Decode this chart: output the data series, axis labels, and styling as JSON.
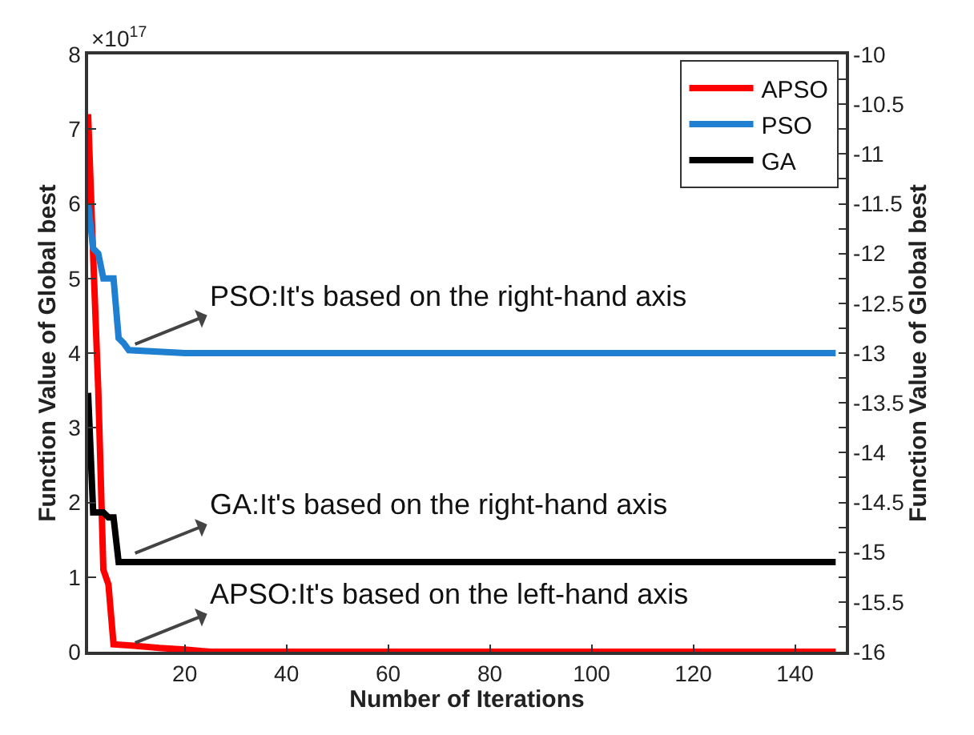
{
  "chart_data": {
    "type": "line",
    "xlabel": "Number of Iterations",
    "ylabel": "Function Value of Global best",
    "y2label": "Function Value of Global best",
    "annotations": [
      "PSO:It's based on the right-hand axis",
      "GA:It's based on the right-hand axis",
      "APSO:It's based on the left-hand axis",
      "×10$^{17}$"
    ],
    "series": [
      {
        "name": "APSO",
        "color": "#ff0000",
        "x": [
          1,
          2,
          3,
          4,
          5,
          6,
          10,
          15,
          20,
          25,
          148
        ],
        "values": [
          7.2,
          5.3,
          3.5,
          1.1,
          0.9,
          0.1,
          0.08,
          0.05,
          0.03,
          0,
          0
        ]
      },
      {
        "name": "PSO",
        "color": "#1f7fd0",
        "axis": "y2",
        "x": [
          1,
          2,
          3,
          4,
          6,
          7,
          8,
          9,
          20,
          148
        ],
        "values": [
          -11.5,
          -11.95,
          -12.0,
          -12.25,
          -12.25,
          -12.85,
          -12.9,
          -12.97,
          -13,
          -13
        ]
      },
      {
        "name": "GA",
        "color": "#000000",
        "axis": "y2",
        "x": [
          1,
          2,
          4,
          5,
          6,
          7,
          148
        ],
        "values": [
          -13.4,
          -14.6,
          -14.6,
          -14.65,
          -14.65,
          -15.1,
          -15.1
        ]
      }
    ],
    "xlim": [
      1,
      150
    ],
    "xticks": [
      20,
      40,
      60,
      80,
      100,
      120,
      140
    ],
    "ylim": [
      0,
      8
    ],
    "yticks": [
      0,
      1,
      2,
      3,
      4,
      5,
      6,
      7,
      8
    ],
    "y2lim": [
      -16,
      -10
    ],
    "y2ticks": [
      -16,
      {
        "value": -15.75,
        "label": null
      },
      -15.5,
      {
        "value": -15.25,
        "label": null
      },
      -15,
      {
        "value": -14.75,
        "label": null
      },
      -14.5,
      {
        "value": -14.25,
        "label": null
      },
      -14,
      {
        "value": -13.75,
        "label": null
      },
      -13.5,
      {
        "value": -13.25,
        "label": null
      },
      -13,
      {
        "value": -12.75,
        "label": null
      },
      -12.5,
      {
        "value": -12.25,
        "label": null
      },
      -12,
      {
        "value": -11.75,
        "label": null
      },
      -11.5,
      {
        "value": -11.25,
        "label": null
      },
      -11,
      {
        "value": -10.75,
        "label": null
      },
      -10.5,
      {
        "value": -10.25,
        "label": null
      },
      -10
    ],
    "legend": "top right",
    "marker": "none",
    "line_style": "solid"
  }
}
